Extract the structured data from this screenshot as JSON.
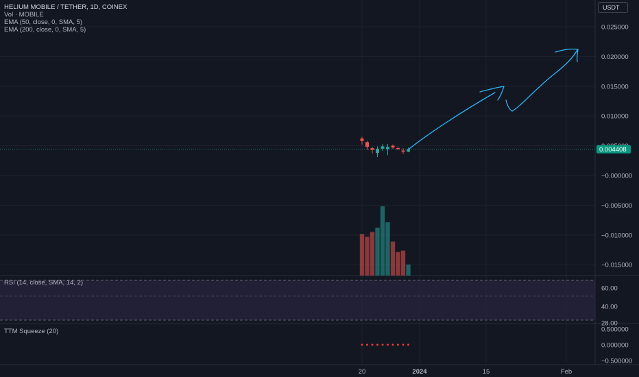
{
  "header": {
    "symbol_line": "HELIUM MOBILE / TETHER, 1D, COINEX",
    "volume_line": "Vol · MOBILE",
    "ema50_line": "EMA (50, close, 0, SMA, 5)",
    "ema200_line": "EMA (200, close, 0, SMA, 5)",
    "currency": "USDT"
  },
  "panes": {
    "rsi_label": "RSI (14, close, SMA, 14, 2)",
    "ttm_label": "TTM Squeeze (20)"
  },
  "colors": {
    "background": "#131722",
    "up": "#26a69a",
    "down": "#ef5350",
    "annotation": "#29b6f6",
    "price_badge": "#089981",
    "rsi_band": "#2a2540",
    "ttm_dot": "#e53935"
  },
  "chart_data": [
    {
      "type": "candlestick",
      "name": "price",
      "y_ticks": [
        0.025,
        0.02,
        0.015,
        0.01,
        0.005,
        0.0,
        -0.005,
        -0.01,
        -0.015
      ],
      "y_tick_labels": [
        "0.025000",
        "0.020000",
        "0.015000",
        "0.010000",
        "0.005000",
        "−0.000000",
        "−0.005000",
        "−0.010000",
        "−0.015000"
      ],
      "ylim": [
        -0.0158,
        0.0285
      ],
      "last_price": 0.004408,
      "last_price_label": "0.004408",
      "x_ticks": [
        "20",
        "2024",
        "15",
        "Feb"
      ],
      "candles": [
        {
          "o": 0.0058,
          "h": 0.0065,
          "l": 0.0052,
          "c": 0.0062,
          "dir": "down"
        },
        {
          "o": 0.0056,
          "h": 0.0058,
          "l": 0.0043,
          "c": 0.0048,
          "dir": "down"
        },
        {
          "o": 0.0043,
          "h": 0.0048,
          "l": 0.0037,
          "c": 0.0046,
          "dir": "down"
        },
        {
          "o": 0.0038,
          "h": 0.0049,
          "l": 0.0031,
          "c": 0.0045,
          "dir": "up"
        },
        {
          "o": 0.0045,
          "h": 0.0053,
          "l": 0.0041,
          "c": 0.0049,
          "dir": "up"
        },
        {
          "o": 0.0044,
          "h": 0.0053,
          "l": 0.0034,
          "c": 0.0048,
          "dir": "up"
        },
        {
          "o": 0.005,
          "h": 0.0052,
          "l": 0.0045,
          "c": 0.0047,
          "dir": "down"
        },
        {
          "o": 0.0046,
          "h": 0.0049,
          "l": 0.0043,
          "c": 0.0045,
          "dir": "down"
        },
        {
          "o": 0.0042,
          "h": 0.0046,
          "l": 0.0036,
          "c": 0.004,
          "dir": "down"
        },
        {
          "o": 0.004,
          "h": 0.0047,
          "l": 0.0039,
          "c": 0.0044,
          "dir": "up"
        }
      ],
      "volume": {
        "values": [
          60,
          56,
          63,
          69,
          100,
          77,
          49,
          34,
          36,
          16
        ],
        "dirs": [
          "down",
          "down",
          "down",
          "up",
          "up",
          "up",
          "down",
          "down",
          "down",
          "up"
        ]
      }
    },
    {
      "type": "line",
      "name": "RSI",
      "y_ticks": [
        60,
        40,
        28
      ],
      "y_tick_labels": [
        "60.00",
        "40.00",
        "28.00"
      ]
    },
    {
      "type": "scatter",
      "name": "TTM Squeeze",
      "y_ticks": [
        0.5,
        0.0,
        -0.5
      ],
      "y_tick_labels": [
        "0.500000",
        "0.000000",
        "−0.500000"
      ],
      "dots": 10,
      "value": 0.0
    }
  ]
}
